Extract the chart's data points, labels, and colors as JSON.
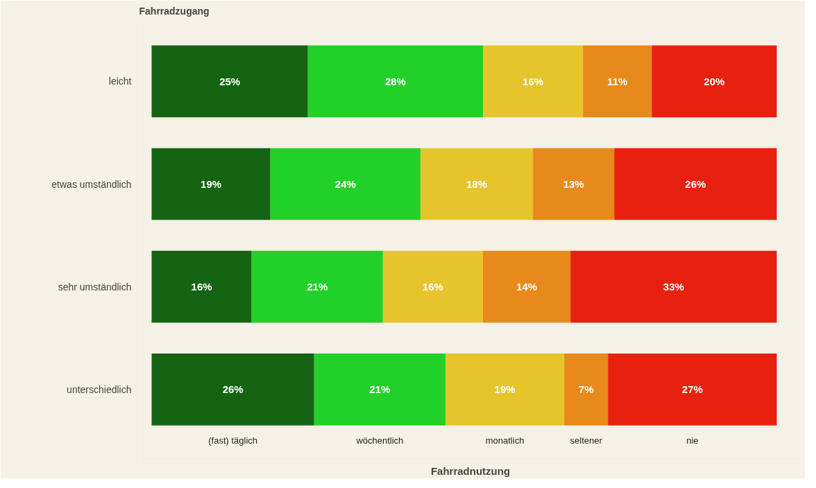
{
  "chart_data": {
    "type": "bar",
    "orientation": "horizontal",
    "stacked": true,
    "ylabel": "Fahrradzugang",
    "xlabel": "Fahrradnutzung",
    "categories": [
      "leicht",
      "etwas umständlich",
      "sehr umständlich",
      "unterschiedlich"
    ],
    "series": [
      {
        "name": "(fast) täglich",
        "color": "#146414",
        "values": [
          25,
          19,
          16,
          26
        ],
        "value_labels": [
          "25%",
          "19%",
          "16%",
          "26%"
        ]
      },
      {
        "name": "wöchentlich",
        "color": "#22d02a",
        "values": [
          28,
          24,
          21,
          21
        ],
        "value_labels": [
          "28%",
          "24%",
          "21%",
          "21%"
        ]
      },
      {
        "name": "monatlich",
        "color": "#e6c42c",
        "values": [
          16,
          18,
          16,
          19
        ],
        "value_labels": [
          "16%",
          "18%",
          "16%",
          "19%"
        ]
      },
      {
        "name": "seltener",
        "color": "#e8891c",
        "values": [
          11,
          13,
          14,
          7
        ],
        "value_labels": [
          "11%",
          "13%",
          "14%",
          "7%"
        ]
      },
      {
        "name": "nie",
        "color": "#e8200f",
        "values": [
          20,
          26,
          33,
          27
        ],
        "value_labels": [
          "20%",
          "26%",
          "33%",
          "27%"
        ]
      }
    ],
    "grid": false
  }
}
